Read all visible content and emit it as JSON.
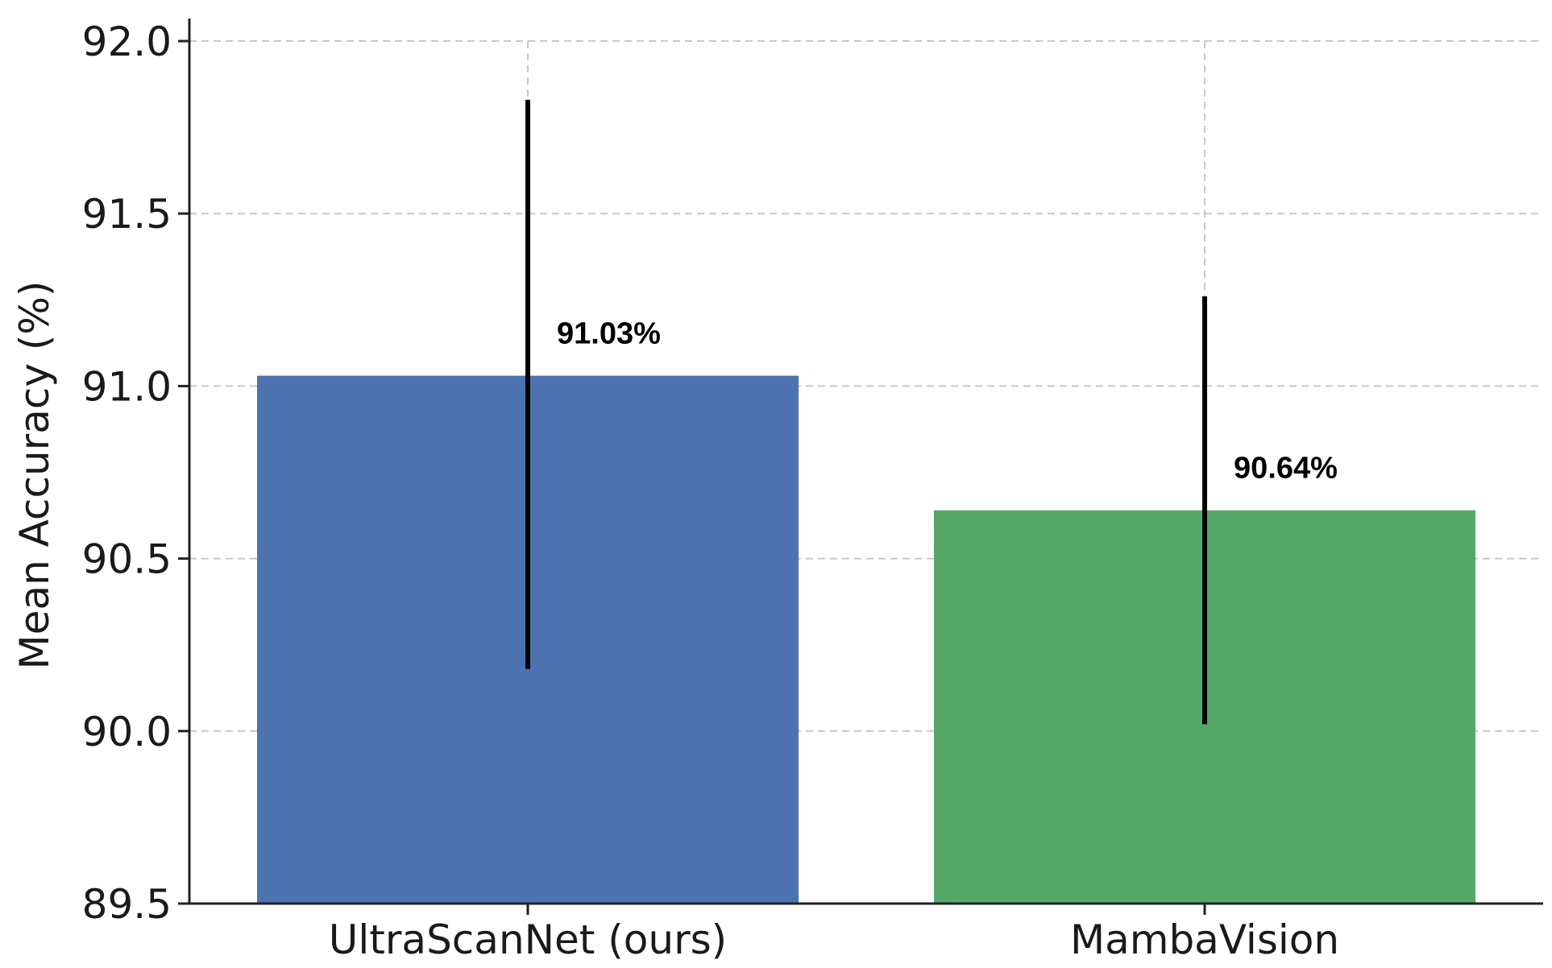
{
  "chart_data": {
    "type": "bar",
    "title": "",
    "xlabel": "",
    "ylabel": "Mean Accuracy (%)",
    "categories": [
      "UltraScanNet (ours)",
      "MambaVision"
    ],
    "values": [
      91.03,
      90.64
    ],
    "value_labels": [
      "91.03%",
      "90.64%"
    ],
    "error_ranges": [
      [
        90.18,
        91.83
      ],
      [
        90.02,
        91.26
      ]
    ],
    "bar_colors": [
      "#4c72b0",
      "#55a868"
    ],
    "ylim": [
      89.5,
      92.0
    ],
    "yticks": [
      "89.5",
      "90.0",
      "90.5",
      "91.0",
      "91.5",
      "92.0"
    ],
    "grid": true,
    "legend": "none"
  }
}
